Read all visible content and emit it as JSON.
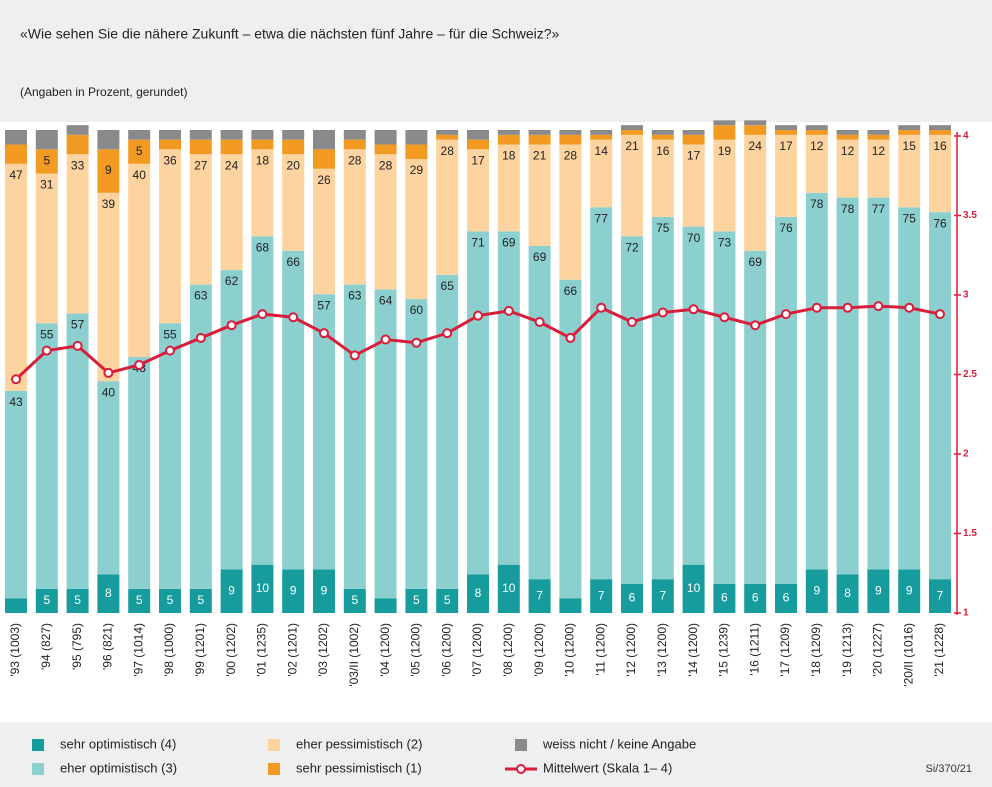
{
  "chart_data": {
    "type": "bar",
    "stacked": true,
    "title": "«Wie sehen Sie die nähere Zukunft – etwa die nächsten fünf Jahre – für die Schweiz?»",
    "subtitle": "(Angaben in Prozent, gerundet)",
    "source": "Si/370/21",
    "categories": [
      "'93 (1003)",
      "'94 (827)",
      "'95 (795)",
      "'96 (821)",
      "'97 (1014)",
      "'98 (1000)",
      "'99 (1201)",
      "'00 (1202)",
      "'01 (1235)",
      "'02 (1201)",
      "'03 (1202)",
      "'03/II (1002)",
      "'04 (1200)",
      "'05 (1200)",
      "'06 (1200)",
      "'07 (1200)",
      "'08 (1200)",
      "'09 (1200)",
      "'10 (1200)",
      "'11 (1200)",
      "'12 (1200)",
      "'13 (1200)",
      "'14 (1200)",
      "'15 (1239)",
      "'16 (1211)",
      "'17 (1209)",
      "'18 (1209)",
      "'19 (1213)",
      "'20 (1227)",
      "'20/II (1016)",
      "'21 (1228)"
    ],
    "ylim": [
      0,
      100
    ],
    "y2lim": [
      1,
      4
    ],
    "y2ticks": [
      1,
      1.5,
      2,
      2.5,
      3,
      3.5,
      4
    ],
    "label_min": 5,
    "series": [
      {
        "name": "sehr optimistisch (4)",
        "color": "#169c9c",
        "values": [
          3,
          5,
          5,
          8,
          5,
          5,
          5,
          9,
          10,
          9,
          9,
          5,
          3,
          5,
          5,
          8,
          10,
          7,
          3,
          7,
          6,
          7,
          10,
          6,
          6,
          6,
          9,
          8,
          9,
          9,
          7
        ]
      },
      {
        "name": "eher optimistisch (3)",
        "color": "#8ccfcf",
        "values": [
          43,
          55,
          57,
          40,
          48,
          55,
          63,
          62,
          68,
          66,
          57,
          63,
          64,
          60,
          65,
          71,
          69,
          69,
          66,
          77,
          72,
          75,
          70,
          73,
          69,
          76,
          78,
          78,
          77,
          75,
          76
        ]
      },
      {
        "name": "eher pessimistisch (2)",
        "color": "#fdd3a0",
        "values": [
          47,
          31,
          33,
          39,
          40,
          36,
          27,
          24,
          18,
          20,
          26,
          28,
          28,
          29,
          28,
          17,
          18,
          21,
          28,
          14,
          21,
          16,
          17,
          19,
          24,
          17,
          12,
          12,
          12,
          15,
          16
        ]
      },
      {
        "name": "sehr pessimistisch (1)",
        "color": "#f39a22",
        "values": [
          4,
          5,
          4,
          9,
          5,
          2,
          3,
          3,
          2,
          3,
          4,
          2,
          2,
          3,
          1,
          2,
          2,
          2,
          2,
          1,
          1,
          1,
          2,
          3,
          2,
          1,
          1,
          1,
          1,
          1,
          1
        ]
      },
      {
        "name": "weiss nicht / keine Angabe",
        "color": "#8a8a8d",
        "values": [
          3,
          4,
          2,
          4,
          2,
          2,
          2,
          2,
          2,
          2,
          4,
          2,
          3,
          3,
          1,
          2,
          1,
          1,
          1,
          1,
          1,
          1,
          1,
          1,
          1,
          1,
          1,
          1,
          1,
          1,
          1
        ]
      },
      {
        "name": "Mittelwert (Skala 1– 4)",
        "color": "#d81e3a",
        "type": "line",
        "axis": "y2",
        "values": [
          2.47,
          2.65,
          2.68,
          2.51,
          2.56,
          2.65,
          2.73,
          2.81,
          2.88,
          2.86,
          2.76,
          2.62,
          2.72,
          2.7,
          2.76,
          2.87,
          2.9,
          2.83,
          2.73,
          2.92,
          2.83,
          2.89,
          2.91,
          2.86,
          2.81,
          2.88,
          2.92,
          2.92,
          2.93,
          2.92,
          2.88
        ]
      }
    ]
  }
}
